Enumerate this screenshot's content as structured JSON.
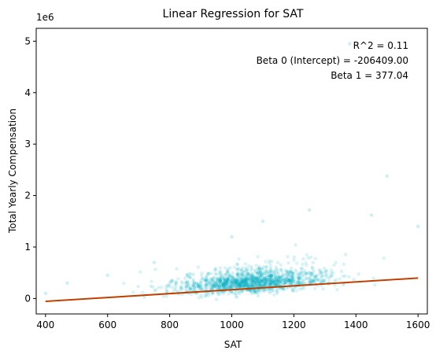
{
  "chart_data": {
    "type": "scatter",
    "title": "Linear Regression for SAT",
    "xlabel": "SAT",
    "ylabel": "Total Yearly Compensation",
    "offset_label": "1e6",
    "xlim": [
      370,
      1630
    ],
    "ylim": [
      -0.3,
      5.25
    ],
    "y_unit_multiplier": 1000000,
    "x_ticks": [
      400,
      600,
      800,
      1000,
      1200,
      1400,
      1600
    ],
    "y_ticks": [
      0,
      1,
      2,
      3,
      4,
      5
    ],
    "grid": false,
    "colors": {
      "points": "#00b0c0",
      "fit_line": "#c04000"
    },
    "annotations": [
      "R^2 = 0.11",
      "Beta 0 (Intercept) = -206409.00",
      "Beta 1 = 377.04"
    ],
    "regression": {
      "intercept": -206409.0,
      "slope": 377.04,
      "x_range": [
        400,
        1600
      ]
    },
    "scatter_cluster": {
      "description_points": [
        {
          "x": 400,
          "y": 0.1
        },
        {
          "x": 470,
          "y": 0.3
        },
        {
          "x": 600,
          "y": 0.45
        },
        {
          "x": 750,
          "y": 0.7
        },
        {
          "x": 1000,
          "y": 1.2
        },
        {
          "x": 1100,
          "y": 1.5
        },
        {
          "x": 1250,
          "y": 1.72
        },
        {
          "x": 1450,
          "y": 1.62
        },
        {
          "x": 1500,
          "y": 2.38
        },
        {
          "x": 1600,
          "y": 1.4
        },
        {
          "x": 1380,
          "y": 4.95
        }
      ]
    }
  }
}
